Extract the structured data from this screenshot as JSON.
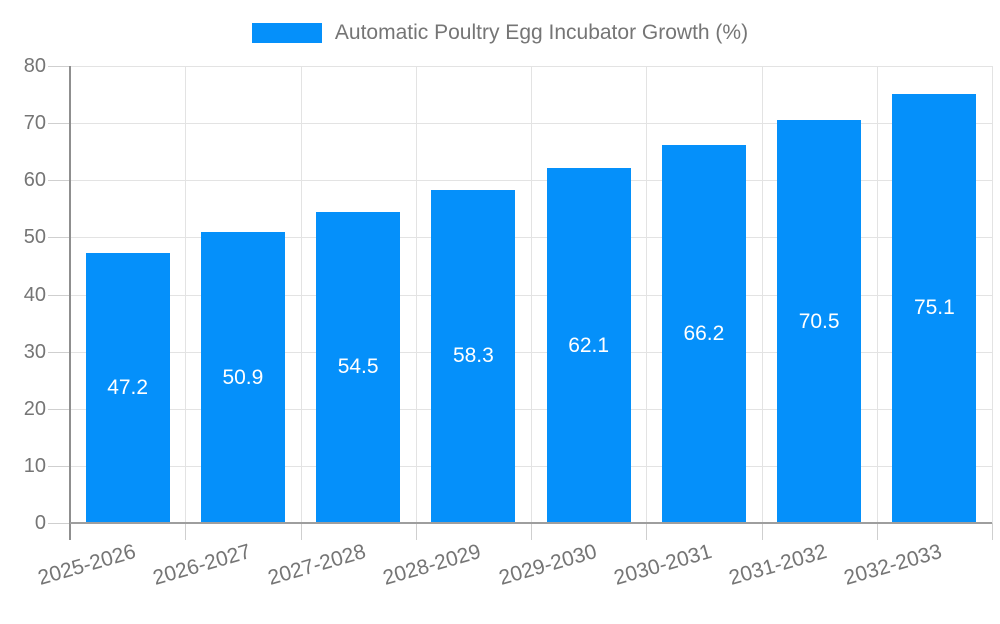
{
  "legend": {
    "label": "Automatic Poultry Egg Incubator Growth (%)",
    "swatch_color": "#0590fa"
  },
  "chart_data": {
    "type": "bar",
    "title": "Automatic Poultry Egg Incubator Growth (%)",
    "categories": [
      "2025-2026",
      "2026-2027",
      "2027-2028",
      "2028-2029",
      "2029-2030",
      "2030-2031",
      "2031-2032",
      "2032-2033"
    ],
    "values": [
      47.2,
      50.9,
      54.5,
      58.3,
      62.1,
      66.2,
      70.5,
      75.1
    ],
    "value_labels": [
      "47.2",
      "50.9",
      "54.5",
      "58.3",
      "62.1",
      "66.2",
      "70.5",
      "75.1"
    ],
    "xlabel": "",
    "ylabel": "",
    "ylim": [
      0,
      80
    ],
    "ytick_step": 10,
    "ytick_labels": [
      "0",
      "10",
      "20",
      "30",
      "40",
      "50",
      "60",
      "70",
      "80"
    ],
    "grid": true,
    "legend_position": "top-center",
    "colors": {
      "bar": "#0590fa",
      "value_label": "#ffffff",
      "axis_text": "#757575",
      "grid_line": "#e3e3e3",
      "tick": "#cfcfcf",
      "y_axis_line": "#8f8f8f",
      "x_axis_line": "#9e9e9e",
      "background": "#ffffff"
    }
  }
}
